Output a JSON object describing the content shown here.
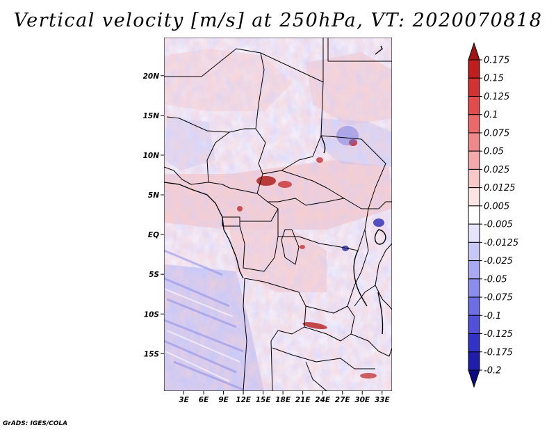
{
  "title": "Vertical velocity [m/s] at 250hPa, VT: 2020070818",
  "credit": "GrADS: IGES/COLA",
  "map": {
    "lat_labels": [
      "20N",
      "15N",
      "10N",
      "5N",
      "EQ",
      "5S",
      "10S",
      "15S"
    ],
    "lat_values": [
      20,
      15,
      10,
      5,
      0,
      -5,
      -10,
      -15
    ],
    "lon_labels": [
      "3E",
      "6E",
      "9E",
      "12E",
      "15E",
      "18E",
      "21E",
      "24E",
      "27E",
      "30E",
      "33E"
    ],
    "lon_values": [
      3,
      6,
      9,
      12,
      15,
      18,
      21,
      24,
      27,
      30,
      33
    ],
    "lon_range": [
      0,
      34.5
    ],
    "lat_range": [
      -19.7,
      24.8
    ]
  },
  "colorbar": {
    "labels": [
      "0.175",
      "0.15",
      "0.125",
      "0.1",
      "0.075",
      "0.05",
      "0.025",
      "0.0125",
      "0.005",
      "-0.005",
      "-0.0125",
      "-0.025",
      "-0.05",
      "-0.075",
      "-0.1",
      "-0.125",
      "-0.175",
      "-0.2"
    ],
    "colors": [
      "#a01414",
      "#c01e1e",
      "#d23232",
      "#e14b4b",
      "#ea6a6a",
      "#f08a8a",
      "#f5aaaa",
      "#f9c8c8",
      "#fde4e4",
      "#ffffff",
      "#e4e4fd",
      "#c8c8f8",
      "#aaaaf3",
      "#8c8cec",
      "#6e6ee4",
      "#5050d8",
      "#3232c8",
      "#1e1eaa",
      "#0c0c82"
    ]
  }
}
